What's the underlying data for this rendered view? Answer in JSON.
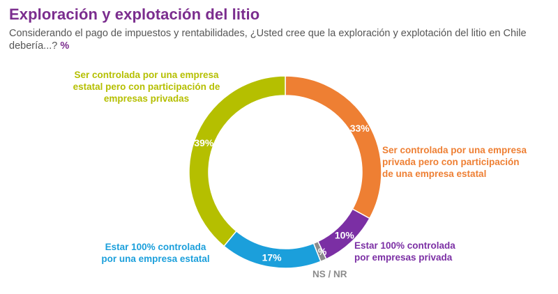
{
  "page": {
    "title": "Exploración y explotación del litio",
    "subtitle_prefix": "Considerando el pago de impuestos y rentabilidades, ¿Usted cree que la exploración y explotación del litio en Chile debería...?",
    "unit": "%"
  },
  "chart_data": {
    "type": "pie",
    "donut": true,
    "categories": [
      "Ser controlada por una empresa privada pero con participación de una empresa estatal",
      "Estar 100% controlada por empresas privada",
      "NS / NR",
      "Estar 100% controlada por una empresa estatal",
      "Ser controlada por una empresa estatal pero con participación de empresas privadas"
    ],
    "values": [
      33,
      10,
      1,
      17,
      39
    ],
    "value_labels": [
      "33%",
      "10%",
      "1%",
      "17%",
      "39%"
    ],
    "colors": [
      "#ee7f33",
      "#7b2fa4",
      "#8c8c8c",
      "#1b9fdb",
      "#b5bf00"
    ],
    "label_colors": [
      "#ee7f33",
      "#7b2fa4",
      "#8c8c8c",
      "#1b9fdb",
      "#b5bf00"
    ]
  }
}
